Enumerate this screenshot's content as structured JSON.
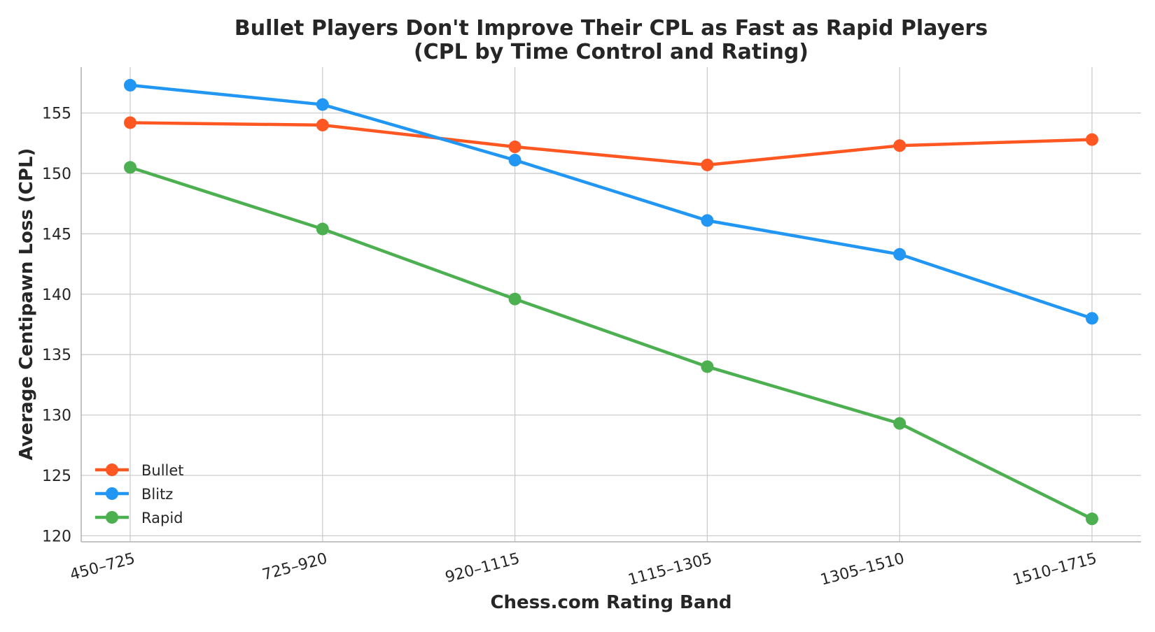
{
  "chart_data": {
    "type": "line",
    "title": "Bullet Players Don't Improve Their CPL as Fast as Rapid Players",
    "subtitle": "(CPL by Time Control and Rating)",
    "xlabel": "Chess.com Rating Band",
    "ylabel": "Average Centipawn Loss (CPL)",
    "categories": [
      "450–725",
      "725–920",
      "920–1115",
      "1115–1305",
      "1305–1510",
      "1510–1715"
    ],
    "ylim": [
      119.5,
      158.8
    ],
    "yticks": [
      120,
      125,
      130,
      135,
      140,
      145,
      150,
      155
    ],
    "grid": true,
    "legend_position": "lower-left",
    "series": [
      {
        "name": "Bullet",
        "color": "#ff5722",
        "values": [
          154.2,
          154.0,
          152.2,
          150.7,
          152.3,
          152.8
        ]
      },
      {
        "name": "Blitz",
        "color": "#2196f3",
        "values": [
          157.3,
          155.7,
          151.1,
          146.1,
          143.3,
          138.0
        ]
      },
      {
        "name": "Rapid",
        "color": "#4caf50",
        "values": [
          150.5,
          145.4,
          139.6,
          134.0,
          129.3,
          121.4
        ]
      }
    ]
  }
}
